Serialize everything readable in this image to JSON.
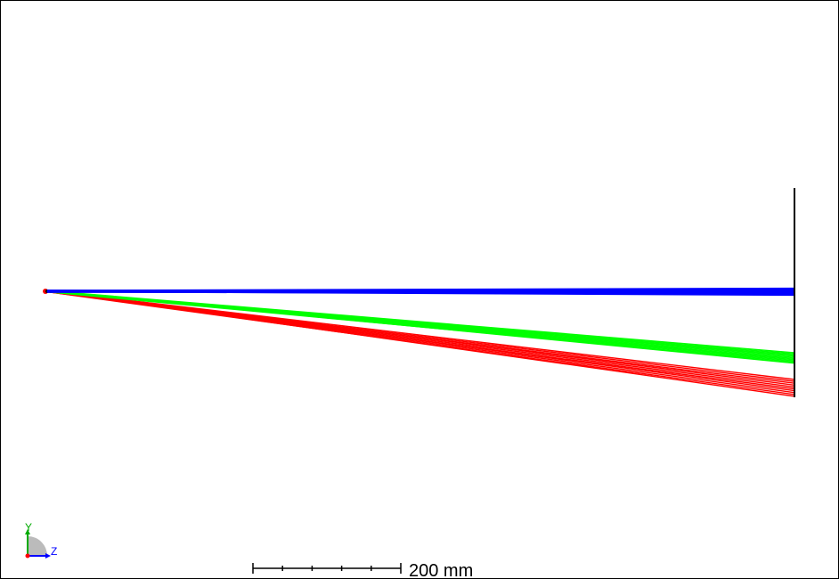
{
  "view": {
    "background": "#ffffff",
    "ray_colors": {
      "blue": "#0000ff",
      "green": "#00ff00",
      "red": "#ff0000"
    },
    "detector_color": "#000000"
  },
  "axes_triad": {
    "y_label": "Y",
    "z_label": "Z",
    "y_color": "#00aa00",
    "z_color": "#0000ff",
    "x_color": "#ff0000"
  },
  "scale_bar": {
    "label": "200 mm",
    "ticks": 5
  }
}
